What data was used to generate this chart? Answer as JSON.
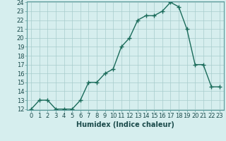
{
  "x": [
    0,
    1,
    2,
    3,
    4,
    5,
    6,
    7,
    8,
    9,
    10,
    11,
    12,
    13,
    14,
    15,
    16,
    17,
    18,
    19,
    20,
    21,
    22,
    23
  ],
  "y": [
    12,
    13,
    13,
    12,
    12,
    12,
    13,
    15,
    15,
    16,
    16.5,
    19,
    20,
    22,
    22.5,
    22.5,
    23,
    24,
    23.5,
    21,
    17,
    17,
    14.5,
    14.5
  ],
  "line_color": "#1a6b5a",
  "marker_color": "#1a6b5a",
  "bg_color": "#d6eeee",
  "grid_color": "#a8cccc",
  "xlabel": "Humidex (Indice chaleur)",
  "ylim": [
    12,
    24
  ],
  "xlim": [
    -0.5,
    23.5
  ],
  "yticks": [
    12,
    13,
    14,
    15,
    16,
    17,
    18,
    19,
    20,
    21,
    22,
    23,
    24
  ],
  "xticks": [
    0,
    1,
    2,
    3,
    4,
    5,
    6,
    7,
    8,
    9,
    10,
    11,
    12,
    13,
    14,
    15,
    16,
    17,
    18,
    19,
    20,
    21,
    22,
    23
  ],
  "xtick_labels": [
    "0",
    "1",
    "2",
    "3",
    "4",
    "5",
    "6",
    "7",
    "8",
    "9",
    "10",
    "11",
    "12",
    "13",
    "14",
    "15",
    "16",
    "17",
    "18",
    "19",
    "20",
    "21",
    "22",
    "23"
  ],
  "ytick_labels": [
    "12",
    "13",
    "14",
    "15",
    "16",
    "17",
    "18",
    "19",
    "20",
    "21",
    "22",
    "23",
    "24"
  ],
  "font_color": "#1a4a4a",
  "xlabel_fontsize": 7,
  "tick_fontsize": 6,
  "marker_size": 2.5,
  "line_width": 1.0
}
